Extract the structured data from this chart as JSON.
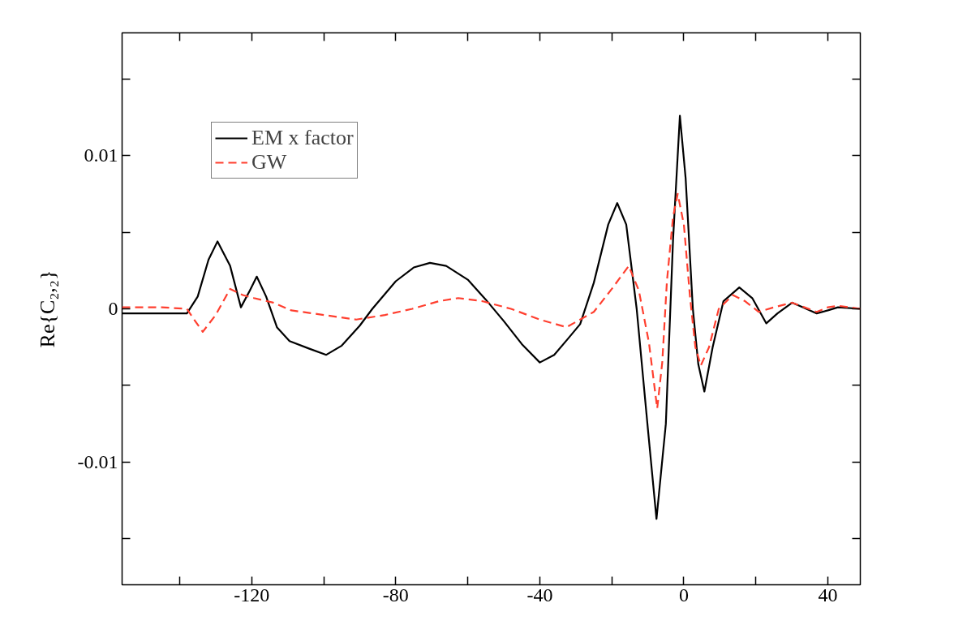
{
  "chart_data": {
    "type": "line",
    "ylabel": "Re{C₂,₂}",
    "xlim": [
      -156,
      49
    ],
    "ylim": [
      -0.018,
      0.018
    ],
    "xticks": [
      {
        "value": -140,
        "label": null
      },
      -120,
      {
        "value": -100,
        "label": null
      },
      -80,
      {
        "value": -60,
        "label": null
      },
      -40,
      {
        "value": -20,
        "label": null
      },
      0,
      {
        "value": 20,
        "label": null
      },
      40
    ],
    "yticks": [
      {
        "value": -0.015,
        "label": null
      },
      -0.01,
      {
        "value": -0.005,
        "label": null
      },
      0,
      {
        "value": 0.005,
        "label": null
      },
      0.01,
      {
        "value": 0.015,
        "label": null
      }
    ],
    "grid": false,
    "legend": "top left",
    "series": [
      {
        "name": "EM x factor",
        "color": "#000000",
        "line_style": "solid",
        "x": [
          -156,
          -145,
          -138,
          -135,
          -132,
          -129.5,
          -126,
          -123,
          -120.5,
          -118.6,
          -116,
          -113,
          -109.5,
          -104,
          -99.3,
          -95,
          -90,
          -86.5,
          -80,
          -75,
          -70.5,
          -66,
          -60,
          -55,
          -50,
          -45,
          -40,
          -36,
          -32,
          -28.8,
          -25,
          -21,
          -18.5,
          -16,
          -13.1,
          -10,
          -7.6,
          -5,
          -3,
          -1.1,
          0.5,
          2.5,
          4,
          5.7,
          8,
          11,
          15.4,
          19,
          22.9,
          26,
          30.1,
          33,
          36.9,
          40,
          42.8,
          49
        ],
        "values": [
          -0.0003,
          -0.0003,
          -0.0003,
          0.0008,
          0.0032,
          0.0044,
          0.0028,
          0.0001,
          0.0012,
          0.0021,
          0.0008,
          -0.0012,
          -0.0021,
          -0.0026,
          -0.003,
          -0.0024,
          -0.0011,
          0.0,
          0.0018,
          0.0027,
          0.003,
          0.0028,
          0.0019,
          0.0006,
          -0.0008,
          -0.0023,
          -0.0035,
          -0.003,
          -0.0019,
          -0.001,
          0.0017,
          0.0055,
          0.0069,
          0.0055,
          0.0,
          -0.0078,
          -0.0137,
          -0.0075,
          0.0045,
          0.0126,
          0.0085,
          0.0,
          -0.0036,
          -0.0054,
          -0.0025,
          0.0005,
          0.0014,
          0.0007,
          -0.00095,
          -0.0003,
          0.0004,
          0.0001,
          -0.0003,
          -0.0001,
          0.0001,
          0.0
        ]
      },
      {
        "name": "GW",
        "color": "#ff3f2f",
        "line_style": "dashed",
        "x": [
          -156,
          -145,
          -138,
          -136,
          -133.6,
          -130,
          -126,
          -122.5,
          -119.4,
          -114,
          -109,
          -100,
          -91,
          -83,
          -75.4,
          -68,
          -62.7,
          -56,
          -48,
          -40,
          -32.6,
          -25,
          -20,
          -15.3,
          -12.5,
          -9.7,
          -7.4,
          -6,
          -4.7,
          -3,
          -1.7,
          0,
          1.7,
          3.2,
          4.7,
          7,
          9.7,
          13.6,
          17,
          20.8,
          25,
          30.1,
          33.5,
          36.9,
          40,
          42.8,
          49
        ],
        "values": [
          0.0001,
          0.0001,
          0.0,
          -0.0007,
          -0.0015,
          -0.0004,
          0.0013,
          0.0009,
          0.0007,
          0.0004,
          -0.0001,
          -0.0004,
          -0.0007,
          -0.0004,
          0.0,
          0.0005,
          0.0007,
          0.0005,
          0.0,
          -0.0007,
          -0.0012,
          -0.0002,
          0.0013,
          0.0028,
          0.0012,
          -0.0022,
          -0.0065,
          -0.0035,
          0.0018,
          0.006,
          0.0075,
          0.0055,
          0.0008,
          -0.0025,
          -0.0037,
          -0.0025,
          0.0,
          0.0009,
          0.0005,
          -0.0002,
          0.0001,
          0.0004,
          0.0001,
          -0.0002,
          0.0001,
          0.0002,
          0.0
        ]
      }
    ]
  }
}
